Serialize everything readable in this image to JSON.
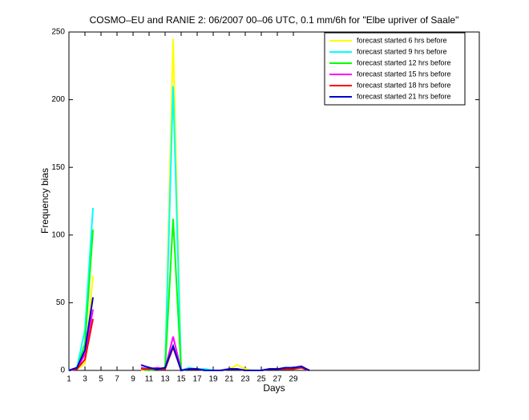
{
  "chart_data": {
    "type": "line",
    "title": "COSMO–EU and RANIE 2: 06/2007 00–06 UTC, 0.1 mm/6h for \"Elbe upriver of Saale\"",
    "xlabel": "Days",
    "ylabel": "Frequency bias",
    "x": [
      1,
      2,
      3,
      4,
      5,
      6,
      7,
      8,
      9,
      10,
      11,
      12,
      13,
      14,
      15,
      16,
      17,
      18,
      19,
      20,
      21,
      22,
      23,
      24,
      25,
      26,
      27,
      28,
      29,
      30,
      31
    ],
    "series": [
      {
        "name": "forecast started 6 hrs before",
        "color": "#ffff00",
        "values": [
          0,
          1,
          5,
          70,
          null,
          null,
          null,
          null,
          null,
          0,
          1,
          1,
          2,
          245,
          0,
          1,
          1,
          0,
          0,
          0,
          1,
          4,
          1,
          0,
          0,
          1,
          1,
          1,
          1,
          3,
          0
        ]
      },
      {
        "name": "forecast started 9 hrs before",
        "color": "#00ffff",
        "values": [
          0,
          2,
          30,
          120,
          null,
          null,
          null,
          null,
          null,
          2,
          1,
          1,
          2,
          210,
          0,
          2,
          1,
          1,
          0,
          0,
          1,
          1,
          0,
          0,
          0,
          1,
          1,
          2,
          1,
          2,
          0
        ]
      },
      {
        "name": "forecast started 12 hrs before",
        "color": "#00ff00",
        "values": [
          0,
          1,
          20,
          104,
          null,
          null,
          null,
          null,
          null,
          1,
          0,
          1,
          1,
          112,
          0,
          1,
          1,
          0,
          0,
          0,
          1,
          1,
          0,
          0,
          0,
          1,
          1,
          1,
          1,
          2,
          0
        ]
      },
      {
        "name": "forecast started 15 hrs before",
        "color": "#ff00ff",
        "values": [
          0,
          1,
          12,
          45,
          null,
          null,
          null,
          null,
          null,
          2,
          1,
          2,
          1,
          25,
          0,
          1,
          1,
          0,
          0,
          0,
          1,
          1,
          0,
          0,
          0,
          1,
          1,
          1,
          2,
          2,
          0
        ]
      },
      {
        "name": "forecast started 18 hrs before",
        "color": "#ff0000",
        "values": [
          0,
          1,
          8,
          38,
          null,
          null,
          null,
          null,
          null,
          1,
          1,
          1,
          1,
          17,
          0,
          1,
          1,
          0,
          0,
          0,
          1,
          1,
          0,
          0,
          0,
          1,
          1,
          1,
          1,
          2,
          0
        ]
      },
      {
        "name": "forecast started 21 hrs before",
        "color": "#0000cc",
        "values": [
          0,
          2,
          15,
          54,
          null,
          null,
          null,
          null,
          null,
          4,
          2,
          1,
          2,
          18,
          0,
          1,
          1,
          0,
          0,
          0,
          1,
          1,
          0,
          0,
          0,
          1,
          1,
          2,
          2,
          3,
          0
        ]
      }
    ],
    "xlim": [
      1,
      52.2
    ],
    "xticks": [
      1,
      3,
      5,
      7,
      9,
      11,
      13,
      15,
      17,
      19,
      21,
      23,
      25,
      27,
      29
    ],
    "ylim": [
      0,
      250
    ],
    "yticks": [
      0,
      50,
      100,
      150,
      200,
      250
    ],
    "legend": "northeast"
  }
}
